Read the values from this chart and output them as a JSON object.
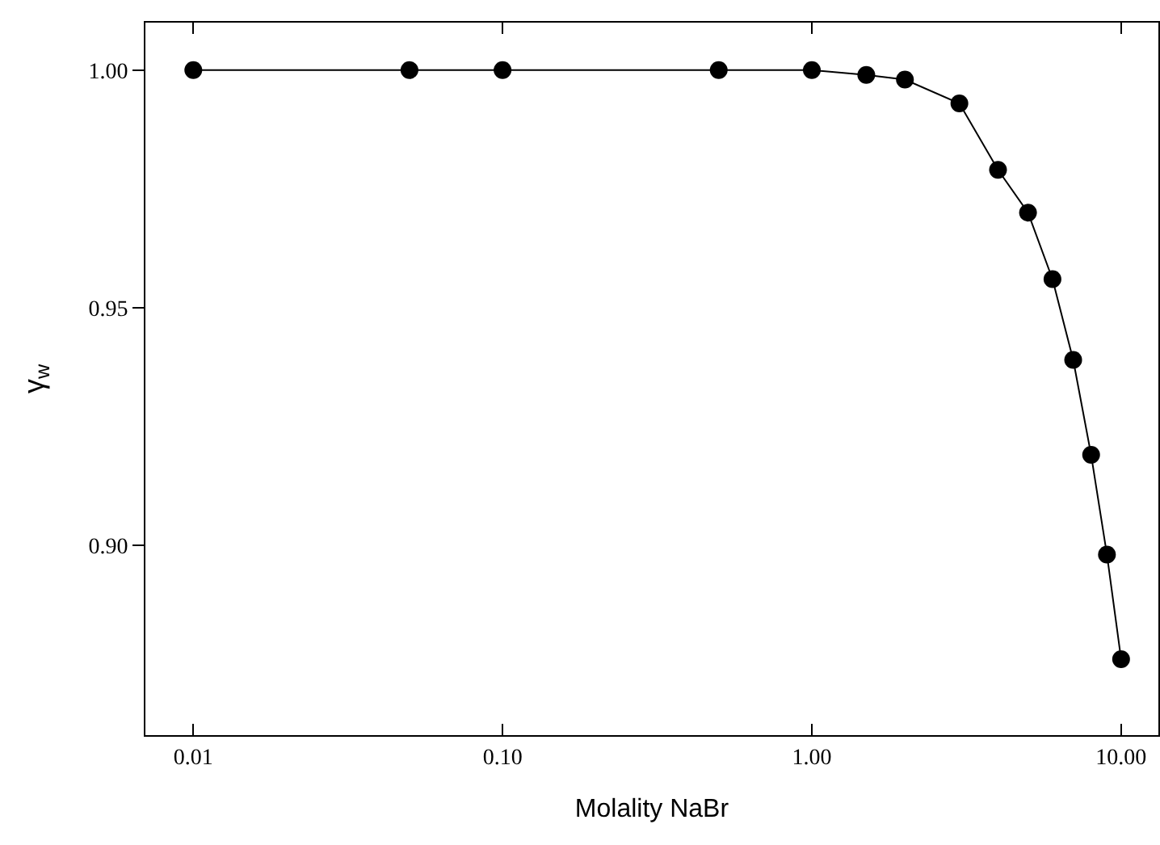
{
  "chart_data": {
    "type": "line",
    "xlabel": "Molality NaBr",
    "ylabel": "γ$_{w}$",
    "log": "x",
    "marker": "circle",
    "line_style": "solid",
    "grid": false,
    "legend": false,
    "x": [
      0.01,
      0.05,
      0.1,
      0.5,
      1,
      1.5,
      2,
      3,
      4,
      5,
      6,
      7,
      8,
      9,
      10
    ],
    "series": [
      {
        "color": "#000000",
        "values": [
          1.0,
          1.0,
          1.0,
          1.0,
          1.0,
          0.999,
          0.998,
          0.993,
          0.979,
          0.97,
          0.956,
          0.939,
          0.919,
          0.898,
          0.876
        ]
      }
    ],
    "xlim": [
      0.007,
      13.2
    ],
    "ylim": [
      0.86,
      1.01
    ],
    "xticks": [
      {
        "value": 0.01,
        "label": "0.01"
      },
      {
        "value": 0.1,
        "label": "0.10"
      },
      {
        "value": 1,
        "label": "1.00"
      },
      {
        "value": 10,
        "label": "10.00"
      }
    ],
    "yticks": [
      {
        "value": 0.9,
        "label": "0.90"
      },
      {
        "value": 0.95,
        "label": "0.95"
      },
      {
        "value": 1,
        "label": "1.00"
      }
    ]
  }
}
